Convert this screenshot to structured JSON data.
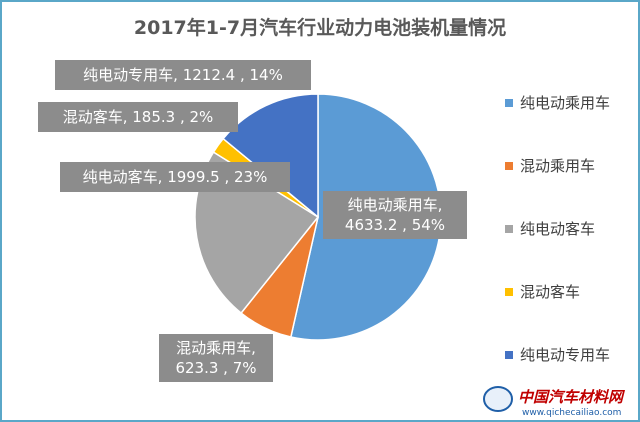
{
  "chart_data": {
    "type": "pie",
    "title": "2017年1-7月汽车行业动力电池装机量情况",
    "series": [
      {
        "name": "纯电动乘用车",
        "value": 4633.2,
        "percent": "54%",
        "color": "#5b9bd5",
        "label": "纯电动乘用车,\n4633.2 , 54%"
      },
      {
        "name": "混动乘用车",
        "value": 623.3,
        "percent": "7%",
        "color": "#ed7d31",
        "label": "混动乘用车,\n623.3 , 7%"
      },
      {
        "name": "纯电动客车",
        "value": 1999.5,
        "percent": "23%",
        "color": "#a5a5a5",
        "label": "纯电动客车, 1999.5 , 23%"
      },
      {
        "name": "混动客车",
        "value": 185.3,
        "percent": "2%",
        "color": "#ffc000",
        "label": "混动客车, 185.3 , 2%"
      },
      {
        "name": "纯电动专用车",
        "value": 1212.4,
        "percent": "14%",
        "color": "#4472c4",
        "label": "纯电动专用车, 1212.4 , 14%"
      }
    ],
    "legend_position": "right"
  },
  "watermark": {
    "logo_text": "中国汽车材料网",
    "url": "www.qichecailiao.com"
  }
}
